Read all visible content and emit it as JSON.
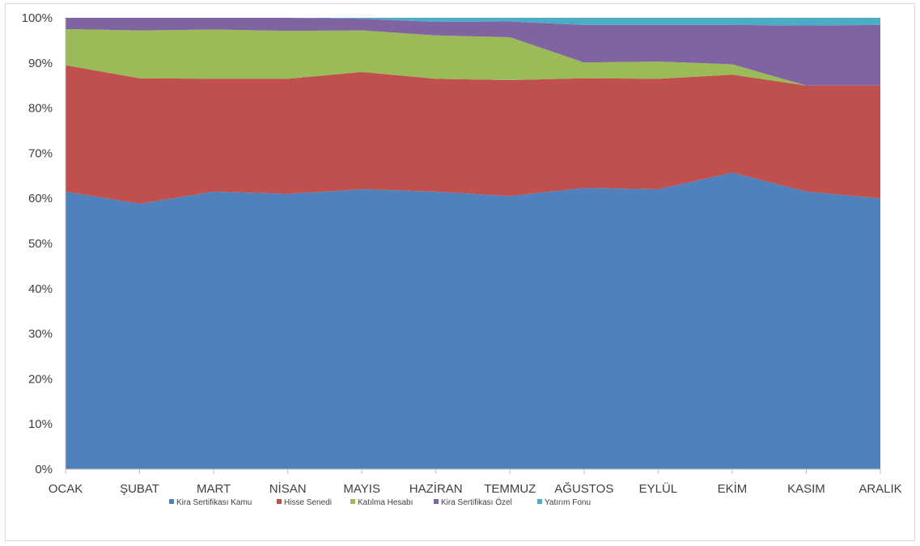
{
  "chart_data": {
    "type": "area",
    "stacked": true,
    "percent": true,
    "categories": [
      "OCAK",
      "ŞUBAT",
      "MART",
      "NİSAN",
      "MAYIS",
      "HAZİRAN",
      "TEMMUZ",
      "AĞUSTOS",
      "EYLÜL",
      "EKİM",
      "KASIM",
      "ARALIK"
    ],
    "series": [
      {
        "name": "Kira Sertifikası Kamu",
        "color": "#4F81BD",
        "values": [
          61.5,
          58.8,
          61.5,
          61.0,
          62.0,
          61.5,
          60.5,
          62.3,
          62.0,
          65.7,
          61.5,
          60.0
        ]
      },
      {
        "name": "Hisse Senedi",
        "color": "#C0504D",
        "values": [
          28.0,
          27.8,
          25.0,
          25.5,
          26.0,
          25.0,
          25.7,
          24.3,
          24.5,
          21.7,
          23.5,
          25.0
        ]
      },
      {
        "name": "Katılma Hesabı",
        "color": "#9BBB59",
        "values": [
          8.0,
          10.6,
          10.9,
          10.6,
          9.2,
          9.6,
          9.5,
          3.5,
          3.8,
          2.3,
          0.0,
          0.0
        ]
      },
      {
        "name": "Kira Sertifikası Özel",
        "color": "#8064A2",
        "values": [
          2.5,
          2.8,
          2.6,
          2.9,
          2.6,
          3.0,
          3.5,
          8.3,
          8.1,
          8.7,
          13.3,
          13.4
        ]
      },
      {
        "name": "Yatırım Fonu",
        "color": "#4BACC6",
        "values": [
          0.0,
          0.0,
          0.0,
          0.0,
          0.2,
          0.9,
          0.8,
          1.6,
          1.6,
          1.6,
          1.7,
          1.6
        ]
      }
    ],
    "yticks": [
      "0%",
      "10%",
      "20%",
      "30%",
      "40%",
      "50%",
      "60%",
      "70%",
      "80%",
      "90%",
      "100%"
    ],
    "ylim": [
      0,
      100
    ],
    "grid": false,
    "legend_position": "bottom",
    "title": "",
    "xlabel": "",
    "ylabel": ""
  }
}
